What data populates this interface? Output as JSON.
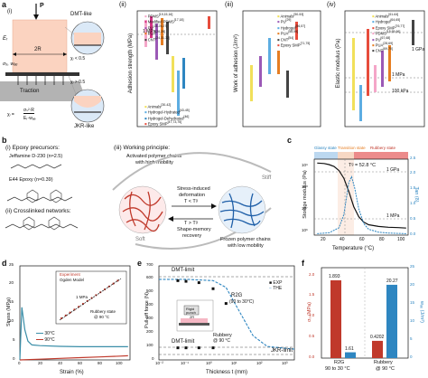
{
  "panels": {
    "a": {
      "label": "a",
      "schematic": {
        "p": "P",
        "e": "Eᵣ",
        "sigma_w": "σₓ, wₐₑ",
        "width": "2R",
        "traction": "Traction",
        "dmt": "DMT-like",
        "jkr": "JKR-like",
        "chi_lt": "χₗ < 0.5",
        "chi_gt": "χₗ > 0.5",
        "formula_left": "χₗ =",
        "formula_num": "σₛ²·R",
        "formula_den": "Eᵣ·wₐₑ"
      }
    },
    "a_ii": {
      "label": "(ii)",
      "ylabel": "Adhesion strength (MPa)",
      "annotation": "1 MPa",
      "legend": [
        {
          "name": "PDMS",
          "ref": "[19,15,16]",
          "color": "#f4a6c8"
        },
        {
          "name": "Modified PDMS",
          "ref": "[17,18]",
          "color": "#d63384"
        },
        {
          "name": "PU",
          "ref": "[23-25,27]",
          "color": "#9b59b6"
        },
        {
          "name": "PUA",
          "ref": "[26,28]",
          "color": "#e67e22"
        },
        {
          "name": "CNT",
          "ref": "[24,31,32]",
          "color": "#444444"
        },
        {
          "name": "Animals",
          "ref": "[30-42]",
          "color": "#f1e05a"
        },
        {
          "name": "Hydrogel-Hydrated",
          "ref": "[43-45]",
          "color": "#5dade2"
        },
        {
          "name": "Hydrogel-Dehydrated",
          "ref": "[46]",
          "color": "#2e86c1"
        },
        {
          "name": "Epoxy SMP",
          "ref": "[47,73,75]",
          "color": "#e74c3c"
        }
      ]
    },
    "a_iii": {
      "label": "(iii)",
      "ylabel": "Work of adhesion (J/m²)",
      "legend": [
        {
          "name": "Animals",
          "ref": "[50-53]",
          "color": "#f1e05a"
        },
        {
          "name": "PU",
          "ref": "[29]",
          "color": "#9b59b6"
        },
        {
          "name": "Hydrogel",
          "ref": "[56,57]",
          "color": "#5dade2"
        },
        {
          "name": "PUA",
          "ref": "[58,59]",
          "color": "#e67e22"
        },
        {
          "name": "CNT",
          "ref": "[54]",
          "color": "#444444"
        },
        {
          "name": "Epoxy SMP",
          "ref": "[71,75]",
          "color": "#e74c3c"
        }
      ]
    },
    "a_iv": {
      "label": "(iv)",
      "ylabel": "Elastic modulus (Pa)",
      "annotations": [
        "1 GPa",
        "1 MPa",
        "100 kPa"
      ],
      "legend": [
        {
          "name": "Animals",
          "ref": "[61-64]",
          "color": "#f1e05a"
        },
        {
          "name": "Hydrogel",
          "ref": "[64,65]",
          "color": "#5dade2"
        },
        {
          "name": "Epoxy SMP",
          "ref": "[76,77]",
          "color": "#e74c3c"
        },
        {
          "name": "PDMS",
          "ref": "[15,65,66]",
          "color": "#f4a6c8"
        },
        {
          "name": "PU",
          "ref": "[67,68]",
          "color": "#9b59b6"
        },
        {
          "name": "PUA",
          "ref": "[28,69]",
          "color": "#e67e22"
        },
        {
          "name": "CNT",
          "ref": "[69,70]",
          "color": "#444444"
        }
      ]
    },
    "b": {
      "label": "b",
      "i_title": "(i) Epoxy precursors:",
      "jeffamine": "Jeffamine D-230 (n≈2.5)",
      "e44": "E44 Epoxy (n≈0.39)",
      "ii_title": "(ii) Crosslinked networks:",
      "iii_title": "(iii) Working principle:",
      "activated": "Activated polymer chains",
      "activated2": "with high mobility",
      "stress": "Stress-induced",
      "deformation": "deformation",
      "t_lt": "T < Tᵍ",
      "t_gt": "T > Tᵍ",
      "shape": "Shape-memory",
      "recovery": "recovery",
      "soft": "Soft",
      "stiff": "Stiff",
      "frozen": "Frozen polymer chains",
      "frozen2": "with low mobility"
    },
    "c": {
      "label": "c",
      "ylabel": "Storage modulus (Pa)",
      "y2label": "Tan (δ)",
      "xlabel": "Temperature (°C)",
      "states": [
        "Glassy state",
        "Transition state",
        "Rubbery state"
      ],
      "tg": "Tᵍ = 52.8 °C",
      "gpa": "1 GPa",
      "mpa": "1 MPa",
      "xticks": [
        "20",
        "40",
        "60",
        "80",
        "100"
      ],
      "yticks": [
        "10⁶",
        "10⁷",
        "10⁸",
        "10⁹"
      ],
      "y2ticks": [
        "0.0",
        "0.5",
        "1.0",
        "1.5",
        "2.0",
        "2.5"
      ]
    },
    "d": {
      "label": "d",
      "ylabel": "Stress (MPa)",
      "xlabel": "Strain (%)",
      "legend": [
        "30°C",
        "90°C"
      ],
      "inset_legend": [
        "Experiment",
        "Ogden Model"
      ],
      "inset_mpa": "1 MPa",
      "inset_rubbery": "Rubbery state",
      "inset_temp": "@ 90 °C",
      "xticks": [
        "0",
        "20",
        "40",
        "60",
        "80",
        "100"
      ],
      "yticks": [
        "0",
        "5",
        "10",
        "15",
        "20",
        "25"
      ]
    },
    "e": {
      "label": "e",
      "ylabel": "Pull-off force (N)",
      "xlabel": "Thickness t (mm)",
      "dmt_top": "DMT-limit",
      "dmt_bottom": "DMT-limit",
      "jkr": "JKR-limit",
      "r2g": "R2G",
      "r2g_sub": "(90 to 30°C)",
      "rubbery": "Rubbery",
      "rubbery_sub": "@ 90 °C",
      "legend": [
        "EXP",
        "THE"
      ],
      "rigid": "Rigid",
      "punch": "punch",
      "punch2": "2R",
      "xticks": [
        "10⁻²",
        "10⁻¹",
        "10⁰",
        "10¹",
        "10²",
        "10³"
      ],
      "yticks": [
        "0",
        "100",
        "200",
        "300",
        "400",
        "500",
        "600",
        "700"
      ]
    },
    "f": {
      "label": "f",
      "ylabel": "σₛ (MPa)",
      "y2label": "wₐₑ (J/m²)",
      "categories": [
        "R2G\n90 to 30 °C",
        "Rubbery\n@ 90 °C"
      ],
      "cat1a": "R2G",
      "cat1b": "90 to 30 °C",
      "cat2a": "Rubbery",
      "cat2b": "@ 90 °C",
      "sigma_values": [
        1.893,
        0.4202
      ],
      "w_values": [
        1.61,
        20.27
      ],
      "sigma_labels": [
        "1.893",
        "0.4202"
      ],
      "w_labels": [
        "1.61",
        "20.27"
      ],
      "yticks": [
        "0.0",
        "0.5",
        "1.0",
        "1.5",
        "2.0"
      ],
      "y2ticks": [
        "0",
        "5",
        "10",
        "15",
        "20",
        "25"
      ]
    }
  },
  "chart_data": [
    {
      "type": "line",
      "panel": "c",
      "xlabel": "Temperature (°C)",
      "ylabel": "Storage modulus (Pa)",
      "y2label": "Tan (δ)",
      "xlim": [
        15,
        110
      ],
      "ylim": [
        1000000,
        3000000000
      ],
      "ylog": true,
      "series": [
        {
          "name": "",
          "axis": "left",
          "x": [
            18,
            25,
            30,
            35,
            40,
            45,
            50,
            55,
            60,
            65,
            70,
            80,
            90,
            100,
            108
          ],
          "values": [
            2000000000,
            1900000000,
            1700000000,
            1400000000,
            900000000,
            400000000,
            100000000,
            20000000,
            7000000,
            4000000,
            3000000,
            2500000,
            2300000,
            2200000,
            2100000
          ]
        },
        {
          "name": "",
          "axis": "right",
          "x": [
            18,
            30,
            40,
            45,
            50,
            52.8,
            56,
            60,
            65,
            70,
            80,
            90,
            108
          ],
          "values": [
            0.05,
            0.08,
            0.25,
            0.7,
            1.8,
            2.0,
            1.6,
            0.9,
            0.4,
            0.2,
            0.1,
            0.07,
            0.05
          ]
        }
      ]
    },
    {
      "type": "line",
      "panel": "d",
      "xlabel": "Strain (%)",
      "ylabel": "Stress (MPa)",
      "xlim": [
        0,
        110
      ],
      "ylim": [
        0,
        25
      ],
      "series": [
        {
          "name": "30°C",
          "x": [
            0,
            2,
            5,
            8,
            12,
            20,
            40,
            60,
            80,
            100,
            108
          ],
          "values": [
            0,
            14,
            8,
            5,
            4,
            3.8,
            3.6,
            3.5,
            3.5,
            3.5,
            3.5
          ]
        },
        {
          "name": "90°C",
          "x": [
            0,
            20,
            40,
            60,
            80,
            100,
            108
          ],
          "values": [
            0,
            0.2,
            0.4,
            0.6,
            0.8,
            1.0,
            1.1
          ]
        }
      ]
    },
    {
      "type": "scatter",
      "panel": "e",
      "xlabel": "Thickness t (mm)",
      "ylabel": "Pull-off force (N)",
      "xlog": true,
      "xlim": [
        0.01,
        1000
      ],
      "ylim": [
        0,
        700
      ],
      "series": [
        {
          "name": "EXP",
          "x": [
            0.05,
            0.1,
            0.3,
            1,
            3
          ],
          "values": [
            590,
            585,
            575,
            530,
            420
          ]
        },
        {
          "name": "THE",
          "x": [
            0.01,
            0.1,
            1,
            3,
            10,
            30,
            100,
            1000
          ],
          "values": [
            600,
            600,
            590,
            540,
            350,
            180,
            100,
            80
          ]
        }
      ]
    },
    {
      "type": "bar",
      "panel": "f",
      "categories": [
        "R2G 90 to 30 °C",
        "Rubbery @ 90 °C"
      ],
      "ylabel": "σₛ (MPa)",
      "y2label": "wₐₑ (J/m²)",
      "ylim": [
        0,
        2.2
      ],
      "y2lim": [
        0,
        25
      ],
      "series": [
        {
          "name": "",
          "axis": "left",
          "values": [
            1.893,
            0.4202
          ]
        },
        {
          "name": "",
          "axis": "right",
          "values": [
            1.61,
            20.27
          ]
        }
      ]
    }
  ]
}
